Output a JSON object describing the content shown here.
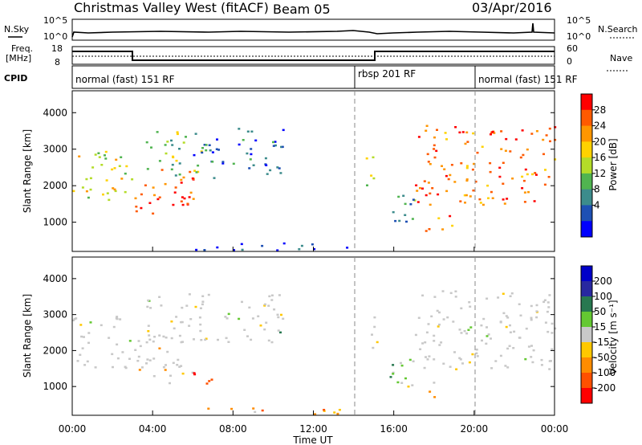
{
  "header": {
    "site": "Christmas Valley West (fitACF)",
    "beam": "Beam 05",
    "date": "03/Apr/2016"
  },
  "panels": {
    "nsky_label": "N.Sky",
    "nsky_ticks": [
      "10^5",
      "10^0"
    ],
    "nsearch_label": "N.Search",
    "nsearch_ticks": [
      "10^5",
      "10^0"
    ],
    "freq_label_1": "Freq.",
    "freq_label_2": "[MHz]",
    "freq_ticks": [
      "18",
      "8"
    ],
    "nave_label": "Nave",
    "nave_ticks": [
      "60",
      "0"
    ],
    "cpid_label": "CPID",
    "modes": [
      {
        "label": "normal (fast) 151 RF",
        "start_h": 0,
        "end_h": 14
      },
      {
        "label": "rbsp 201 RF",
        "start_h": 14,
        "end_h": 20
      },
      {
        "label": "normal (fast) 151 RF",
        "start_h": 20,
        "end_h": 24
      }
    ]
  },
  "power_colorbar": {
    "label": "Power [dB]",
    "ticks": [
      "28",
      "24",
      "20",
      "16",
      "12",
      "8",
      "4"
    ],
    "colors": [
      "#ff0000",
      "#ff5a00",
      "#ff9600",
      "#ffd200",
      "#b4dc28",
      "#50b450",
      "#3c8c8c",
      "#1e50b4",
      "#0000ff"
    ]
  },
  "velocity_colorbar": {
    "label": "Velocity [m s⁻¹]",
    "ticks": [
      "200",
      "100",
      "50",
      "15",
      "-15",
      "-50",
      "-100",
      "-200"
    ],
    "colors": [
      "#0000c8",
      "#2828a0",
      "#287850",
      "#64c832",
      "#c8c8c8",
      "#ffc800",
      "#ff8c00",
      "#ff5000",
      "#ff0000"
    ]
  },
  "chart_data": [
    {
      "type": "heatmap",
      "name": "power",
      "xlabel": "",
      "ylabel": "Slant Range [km]",
      "xlim": [
        0,
        24
      ],
      "ylim": [
        200,
        4600
      ],
      "yticks": [
        1000,
        2000,
        3000,
        4000
      ],
      "regions": [
        {
          "h0": 0.0,
          "h1": 3.0,
          "r0": 1500,
          "r1": 3000,
          "level": 0.55
        },
        {
          "h0": 3.0,
          "h1": 6.0,
          "r0": 1100,
          "r1": 2500,
          "level": 0.85
        },
        {
          "h0": 3.5,
          "h1": 6.5,
          "r0": 2300,
          "r1": 3600,
          "level": 0.45
        },
        {
          "h0": 6.0,
          "h1": 10.5,
          "r0": 2200,
          "r1": 3600,
          "level": 0.2
        },
        {
          "h0": 6.0,
          "h1": 14.0,
          "r0": 250,
          "r1": 450,
          "level": 0.15
        },
        {
          "h0": 14.5,
          "h1": 15.2,
          "r0": 2000,
          "r1": 3000,
          "level": 0.5
        },
        {
          "h0": 15.0,
          "h1": 17.0,
          "r0": 1000,
          "r1": 1800,
          "level": 0.3
        },
        {
          "h0": 17.0,
          "h1": 24.0,
          "r0": 1500,
          "r1": 3700,
          "level": 0.8
        },
        {
          "h0": 17.5,
          "h1": 19.0,
          "r0": 700,
          "r1": 1200,
          "level": 0.8
        }
      ]
    },
    {
      "type": "heatmap",
      "name": "velocity",
      "xlabel": "Time UT",
      "ylabel": "Slant Range [km]",
      "xlim": [
        0,
        24
      ],
      "ylim": [
        200,
        4600
      ],
      "yticks": [
        1000,
        2000,
        3000,
        4000
      ],
      "xticks": [
        "00:00",
        "04:00",
        "08:00",
        "12:00",
        "16:00",
        "20:00",
        "00:00"
      ],
      "regions": [
        {
          "h0": 0.0,
          "h1": 3.0,
          "r0": 1500,
          "r1": 3000,
          "level": 0.5
        },
        {
          "h0": 3.0,
          "h1": 6.0,
          "r0": 1100,
          "r1": 2500,
          "level": 0.55
        },
        {
          "h0": 3.5,
          "h1": 6.5,
          "r0": 2300,
          "r1": 3600,
          "level": 0.5
        },
        {
          "h0": 6.0,
          "h1": 7.0,
          "r0": 1000,
          "r1": 1500,
          "level": 0.9
        },
        {
          "h0": 6.0,
          "h1": 10.5,
          "r0": 2200,
          "r1": 3600,
          "level": 0.5
        },
        {
          "h0": 6.0,
          "h1": 14.0,
          "r0": 250,
          "r1": 450,
          "level": 0.62
        },
        {
          "h0": 14.5,
          "h1": 15.2,
          "r0": 2000,
          "r1": 3000,
          "level": 0.5
        },
        {
          "h0": 15.0,
          "h1": 17.0,
          "r0": 1000,
          "r1": 1800,
          "level": 0.45
        },
        {
          "h0": 17.0,
          "h1": 24.0,
          "r0": 1500,
          "r1": 3700,
          "level": 0.5
        },
        {
          "h0": 17.5,
          "h1": 19.0,
          "r0": 700,
          "r1": 1200,
          "level": 0.6
        }
      ]
    }
  ]
}
